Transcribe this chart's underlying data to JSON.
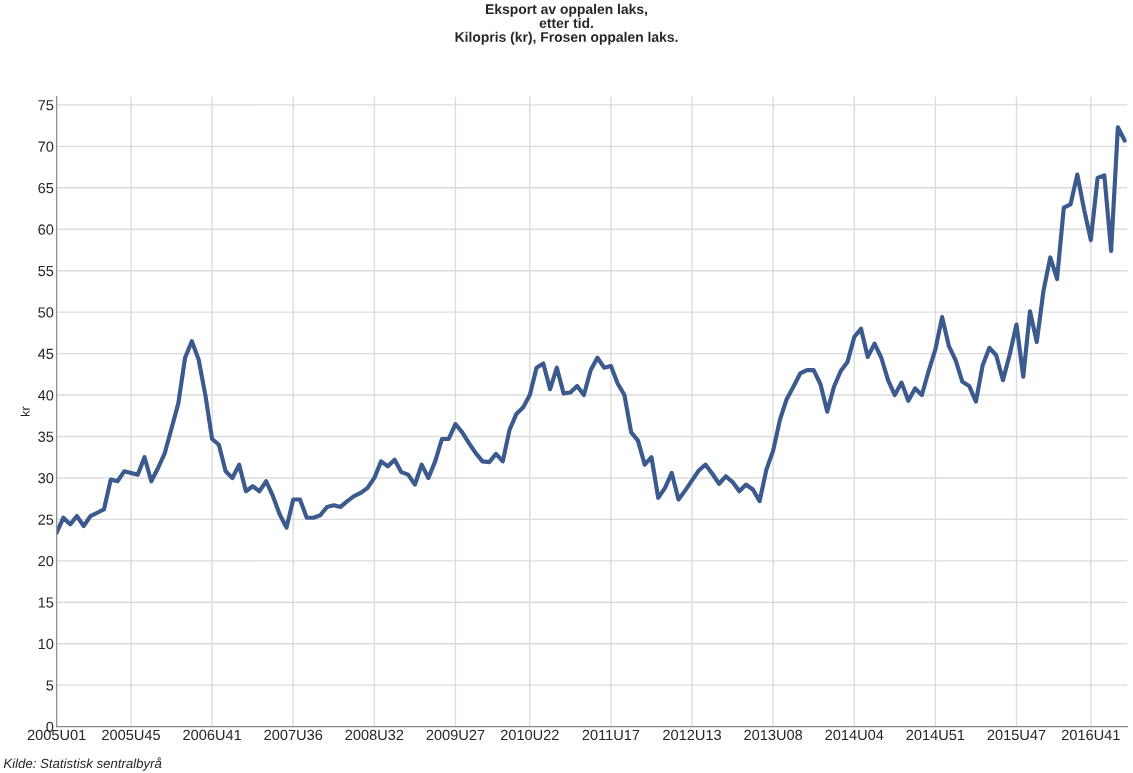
{
  "chart_data": {
    "type": "line",
    "title": "Eksport av oppalen laks,\netter tid.\nKilopris (kr), Frosen oppalen laks.",
    "ylabel": "kr",
    "annotations": [
      "Kilde: Statistisk sentralbyrå"
    ],
    "categories": [
      "2005U01",
      null,
      null,
      null,
      null,
      null,
      null,
      null,
      null,
      null,
      null,
      "2005U45",
      null,
      null,
      null,
      null,
      null,
      null,
      null,
      null,
      null,
      null,
      null,
      "2006U41",
      null,
      null,
      null,
      null,
      null,
      null,
      null,
      null,
      null,
      null,
      null,
      "2007U36",
      null,
      null,
      null,
      null,
      null,
      null,
      null,
      null,
      null,
      null,
      null,
      "2008U32",
      null,
      null,
      null,
      null,
      null,
      null,
      null,
      null,
      null,
      null,
      null,
      "2009U27",
      null,
      null,
      null,
      null,
      null,
      null,
      null,
      null,
      null,
      null,
      "2010U22",
      null,
      null,
      null,
      null,
      null,
      null,
      null,
      null,
      null,
      null,
      null,
      "2011U17",
      null,
      null,
      null,
      null,
      null,
      null,
      null,
      null,
      null,
      null,
      null,
      "2012U13",
      null,
      null,
      null,
      null,
      null,
      null,
      null,
      null,
      null,
      null,
      null,
      "2013U08",
      null,
      null,
      null,
      null,
      null,
      null,
      null,
      null,
      null,
      null,
      null,
      "2014U04",
      null,
      null,
      null,
      null,
      null,
      null,
      null,
      null,
      null,
      null,
      null,
      "2014U51",
      null,
      null,
      null,
      null,
      null,
      null,
      null,
      null,
      null,
      null,
      null,
      "2015U47",
      null,
      null,
      null,
      null,
      null,
      null,
      null,
      null,
      null,
      null,
      "2016U41",
      null,
      null,
      null,
      null,
      null
    ],
    "series": [
      {
        "color": "#3b5a8e",
        "values": [
          23.4,
          25.2,
          24.4,
          25.4,
          24.2,
          25.4,
          25.8,
          26.2,
          29.8,
          29.6,
          30.8,
          30.6,
          30.4,
          32.5,
          29.6,
          31.2,
          33.0,
          36.0,
          39.0,
          44.5,
          46.5,
          44.3,
          40.0,
          34.7,
          34.0,
          30.8,
          30.0,
          31.6,
          28.4,
          29.0,
          28.4,
          29.6,
          27.8,
          25.6,
          24.0,
          27.4,
          27.4,
          25.2,
          25.2,
          25.5,
          26.5,
          26.7,
          26.5,
          27.2,
          27.8,
          28.2,
          28.8,
          30.0,
          32.0,
          31.4,
          32.2,
          30.7,
          30.4,
          29.2,
          31.6,
          30.0,
          32.0,
          34.7,
          34.7,
          36.5,
          35.5,
          34.2,
          33.0,
          32.0,
          31.9,
          32.9,
          32.0,
          35.8,
          37.7,
          38.5,
          40.0,
          43.3,
          43.8,
          40.7,
          43.3,
          40.2,
          40.3,
          41.1,
          40.0,
          43.0,
          44.5,
          43.3,
          43.5,
          41.4,
          40.0,
          35.5,
          34.5,
          31.6,
          32.5,
          27.6,
          28.8,
          30.6,
          27.4,
          28.5,
          29.7,
          30.9,
          31.6,
          30.5,
          29.3,
          30.2,
          29.5,
          28.4,
          29.2,
          28.6,
          27.2,
          31.0,
          33.3,
          37.0,
          39.5,
          41.0,
          42.6,
          43.0,
          43.0,
          41.3,
          38.0,
          41.0,
          42.9,
          44.0,
          47.0,
          48.0,
          44.6,
          46.2,
          44.5,
          41.8,
          40.0,
          41.5,
          39.3,
          40.8,
          40.0,
          42.9,
          45.5,
          49.4,
          45.9,
          44.2,
          41.6,
          41.1,
          39.2,
          43.6,
          45.7,
          44.8,
          41.8,
          44.9,
          48.5,
          42.2,
          50.1,
          46.4,
          52.6,
          56.6,
          54.0,
          62.6,
          63.0,
          66.6,
          62.4,
          58.7,
          66.2,
          66.5,
          57.4,
          72.3,
          70.7
        ]
      }
    ],
    "ylim": [
      0,
      76
    ],
    "yticks": [
      0,
      5,
      10,
      15,
      20,
      25,
      30,
      35,
      40,
      45,
      50,
      55,
      60,
      65,
      70,
      75
    ],
    "grid": true,
    "line_style": "solid"
  }
}
